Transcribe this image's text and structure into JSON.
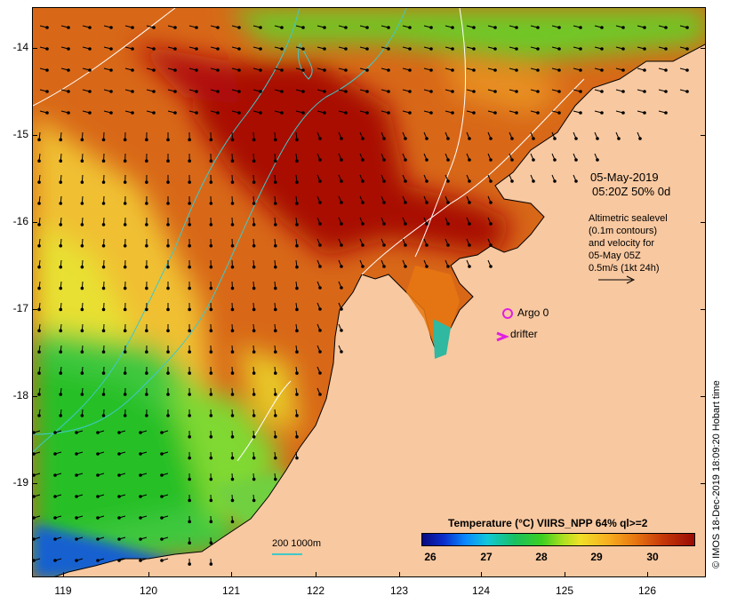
{
  "map": {
    "lat_labels": [
      "-14",
      "-15",
      "-16",
      "-17",
      "-18",
      "-19"
    ],
    "lon_labels": [
      "119",
      "120",
      "121",
      "122",
      "123",
      "124",
      "125",
      "126"
    ]
  },
  "annotations": {
    "date": "05-May-2019",
    "time": "05:20Z  50% 0d",
    "altimetry_line1": "Altimetric sealevel",
    "altimetry_line2": "(0.1m contours)",
    "altimetry_line3": "and velocity for",
    "altimetry_line4": "05-May 05Z",
    "velocity_scale": "0.5m/s (1kt 24h)",
    "argo_label": "Argo 0",
    "drifter_label": "drifter",
    "bathymetry_label": "200  1000m"
  },
  "legend": {
    "title": "Temperature (°C) VIIRS_NPP 64% ql>=2",
    "ticks": [
      "26",
      "27",
      "28",
      "29",
      "30"
    ]
  },
  "credit": "© IMOS 18-Dec-2019 18:09:20 Hobart time",
  "colors": {
    "land": "#f8c8a0",
    "contour": "#40c8c8",
    "argo": "#e020e0"
  }
}
